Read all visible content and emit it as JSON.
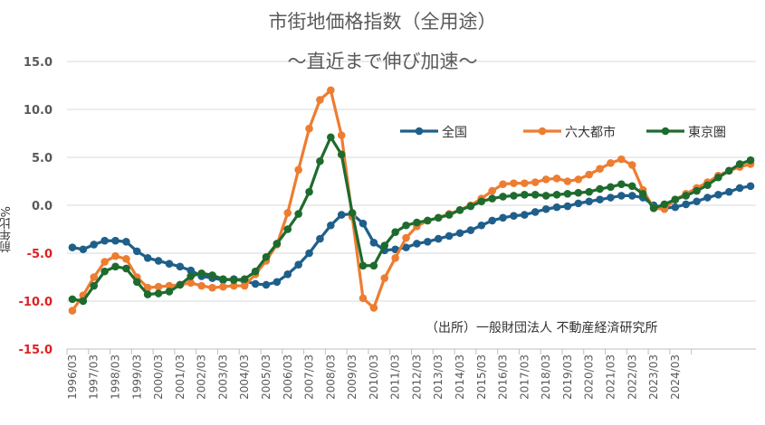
{
  "chart_data": {
    "type": "line",
    "title": "市街地価格指数（全用途）",
    "subtitle": "～直近まで伸び加速～",
    "ylabel": "前年比%",
    "ylim": [
      -15,
      15
    ],
    "yticks": [
      "15.0",
      "10.0",
      "5.0",
      "0.0",
      "-5.0",
      "-10.0",
      "-15.0"
    ],
    "ytick_values": [
      15,
      10,
      5,
      0,
      -5,
      -10,
      -15
    ],
    "negative_tick_color": "#e02020",
    "source": "（出所）一般財団法人 不動産経済研究所",
    "legend_position": "top-right",
    "x_labels": [
      "1996/03",
      "1997/03",
      "1998/03",
      "1999/03",
      "2000/03",
      "2001/03",
      "2002/03",
      "2003/03",
      "2004/03",
      "2005/03",
      "2006/03",
      "2007/03",
      "2008/03",
      "2009/03",
      "2010/03",
      "2011/03",
      "2012/03",
      "2013/03",
      "2014/03",
      "2015/03",
      "2016/03",
      "2017/03",
      "2018/03",
      "2019/03",
      "2020/03",
      "2021/03",
      "2022/03",
      "2023/03",
      "2024/03"
    ],
    "periods_per_year": 2,
    "series": [
      {
        "name": "全国",
        "color": "#1f5f8b",
        "values": [
          -4.4,
          -4.6,
          -4.1,
          -3.7,
          -3.7,
          -3.8,
          -4.8,
          -5.5,
          -5.8,
          -6.1,
          -6.4,
          -6.8,
          -7.4,
          -7.6,
          -7.8,
          -7.7,
          -7.9,
          -8.2,
          -8.3,
          -8.0,
          -7.2,
          -6.2,
          -5.0,
          -3.5,
          -2.1,
          -1.0,
          -0.9,
          -1.9,
          -3.9,
          -4.7,
          -4.6,
          -4.4,
          -4.0,
          -3.8,
          -3.5,
          -3.2,
          -2.9,
          -2.6,
          -2.1,
          -1.6,
          -1.3,
          -1.1,
          -1.0,
          -0.7,
          -0.4,
          -0.2,
          -0.1,
          0.2,
          0.4,
          0.6,
          0.8,
          1.0,
          1.0,
          0.8,
          0.0,
          -0.3,
          -0.2,
          0.1,
          0.4,
          0.8,
          1.1,
          1.4,
          1.8,
          2.0
        ]
      },
      {
        "name": "六大都市",
        "color": "#ed7d31",
        "values": [
          -11.0,
          -9.4,
          -7.5,
          -5.9,
          -5.3,
          -5.6,
          -7.5,
          -8.6,
          -8.5,
          -8.4,
          -8.3,
          -8.1,
          -8.4,
          -8.6,
          -8.5,
          -8.4,
          -8.4,
          -7.2,
          -5.8,
          -4.1,
          -0.8,
          3.7,
          8.0,
          11.0,
          12.0,
          7.3,
          -1.2,
          -9.7,
          -10.7,
          -7.6,
          -5.5,
          -3.4,
          -2.2,
          -1.6,
          -1.3,
          -0.9,
          -0.5,
          0.0,
          0.7,
          1.5,
          2.2,
          2.3,
          2.3,
          2.4,
          2.7,
          2.8,
          2.5,
          2.7,
          3.2,
          3.8,
          4.4,
          4.8,
          4.2,
          1.6,
          -0.3,
          -0.4,
          0.6,
          1.2,
          1.8,
          2.4,
          3.1,
          3.6,
          4.0,
          4.3
        ]
      },
      {
        "name": "東京圏",
        "color": "#1e6b2e",
        "values": [
          -9.8,
          -10.0,
          -8.4,
          -6.9,
          -6.4,
          -6.6,
          -8.0,
          -9.3,
          -9.2,
          -9.0,
          -8.3,
          -7.4,
          -7.1,
          -7.3,
          -7.7,
          -7.8,
          -7.7,
          -6.9,
          -5.4,
          -4.0,
          -2.5,
          -0.9,
          1.4,
          4.6,
          7.1,
          5.3,
          -0.8,
          -6.3,
          -6.3,
          -4.2,
          -2.8,
          -2.1,
          -1.8,
          -1.6,
          -1.3,
          -1.0,
          -0.5,
          -0.1,
          0.4,
          0.7,
          0.9,
          1.0,
          1.1,
          1.1,
          1.0,
          1.1,
          1.2,
          1.3,
          1.4,
          1.7,
          1.9,
          2.2,
          2.0,
          1.2,
          -0.3,
          0.1,
          0.6,
          1.0,
          1.5,
          2.1,
          2.9,
          3.6,
          4.3,
          4.7
        ]
      }
    ]
  }
}
